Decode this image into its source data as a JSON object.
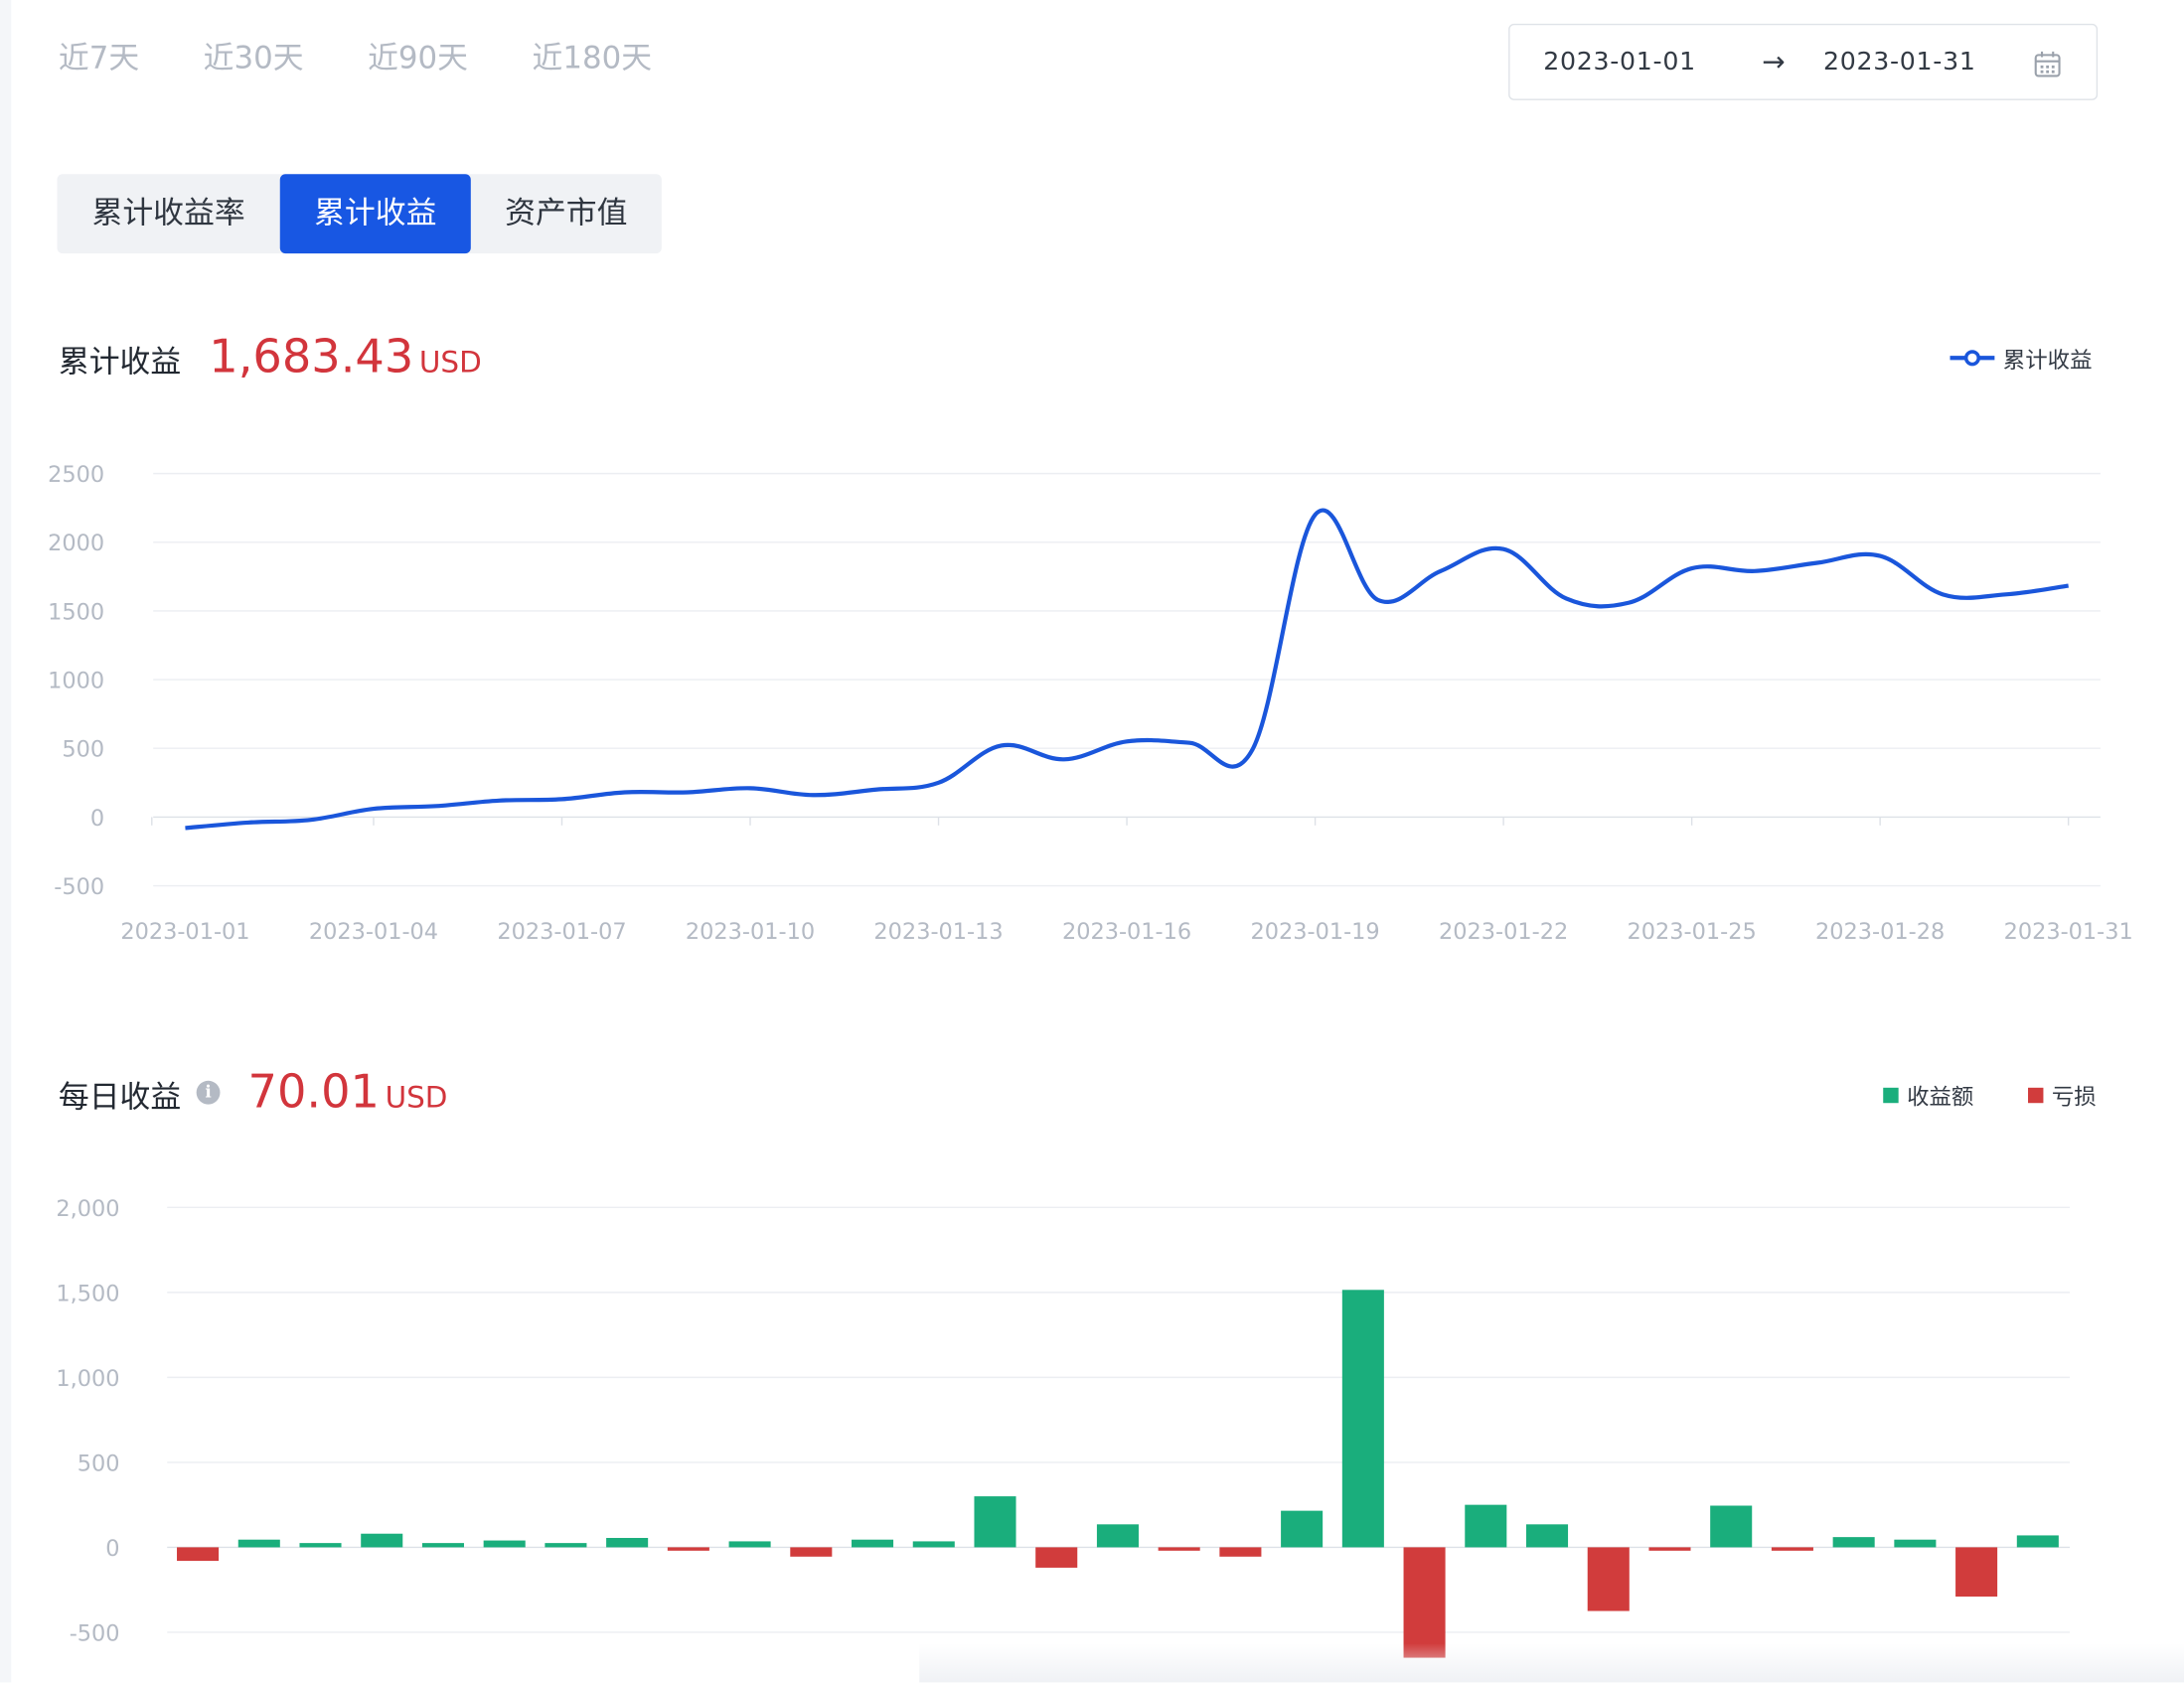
{
  "periods": [
    "近7天",
    "近30天",
    "近90天",
    "近180天"
  ],
  "date_range": {
    "start": "2023-01-01",
    "end": "2023-01-31",
    "arrow": "→"
  },
  "tabs": [
    {
      "label": "累计收益率",
      "active": false
    },
    {
      "label": "累计收益",
      "active": true
    },
    {
      "label": "资产市值",
      "active": false
    }
  ],
  "cumulative": {
    "title": "累计收益",
    "value": "1,683.43",
    "unit": "USD",
    "legend": "累计收益",
    "color": "#1a56db"
  },
  "daily": {
    "title": "每日收益",
    "value": "70.01",
    "unit": "USD",
    "legend_gain": "收益额",
    "legend_loss": "亏损",
    "gain_color": "#1aae7c",
    "loss_color": "#d13c3c"
  },
  "chart_data": [
    {
      "type": "line",
      "series": [
        {
          "name": "累计收益",
          "values": [
            -80,
            -40,
            -20,
            60,
            80,
            120,
            130,
            180,
            180,
            210,
            160,
            200,
            250,
            520,
            420,
            550,
            540,
            490,
            2200,
            1580,
            1790,
            1950,
            1590,
            1560,
            1810,
            1790,
            1850,
            1900,
            1620,
            1620,
            1683.43
          ]
        }
      ],
      "x_labels": [
        "2023-01-01",
        "2023-01-04",
        "2023-01-07",
        "2023-01-10",
        "2023-01-13",
        "2023-01-16",
        "2023-01-19",
        "2023-01-22",
        "2023-01-25",
        "2023-01-28",
        "2023-01-31"
      ],
      "y_ticks": [
        "-500",
        "0",
        "500",
        "1000",
        "1500",
        "2000",
        "2500"
      ],
      "ylim": [
        -500,
        2500
      ]
    },
    {
      "type": "bar",
      "values": [
        -80,
        45,
        25,
        80,
        25,
        40,
        25,
        55,
        -20,
        35,
        -55,
        45,
        35,
        300,
        -120,
        135,
        -20,
        -55,
        215,
        1515,
        -650,
        250,
        135,
        -375,
        -20,
        245,
        -20,
        60,
        45,
        -290,
        70
      ],
      "y_ticks": [
        "-500",
        "0",
        "500",
        "1,000",
        "1,500",
        "2,000"
      ],
      "ylim": [
        -600,
        2000
      ]
    }
  ]
}
